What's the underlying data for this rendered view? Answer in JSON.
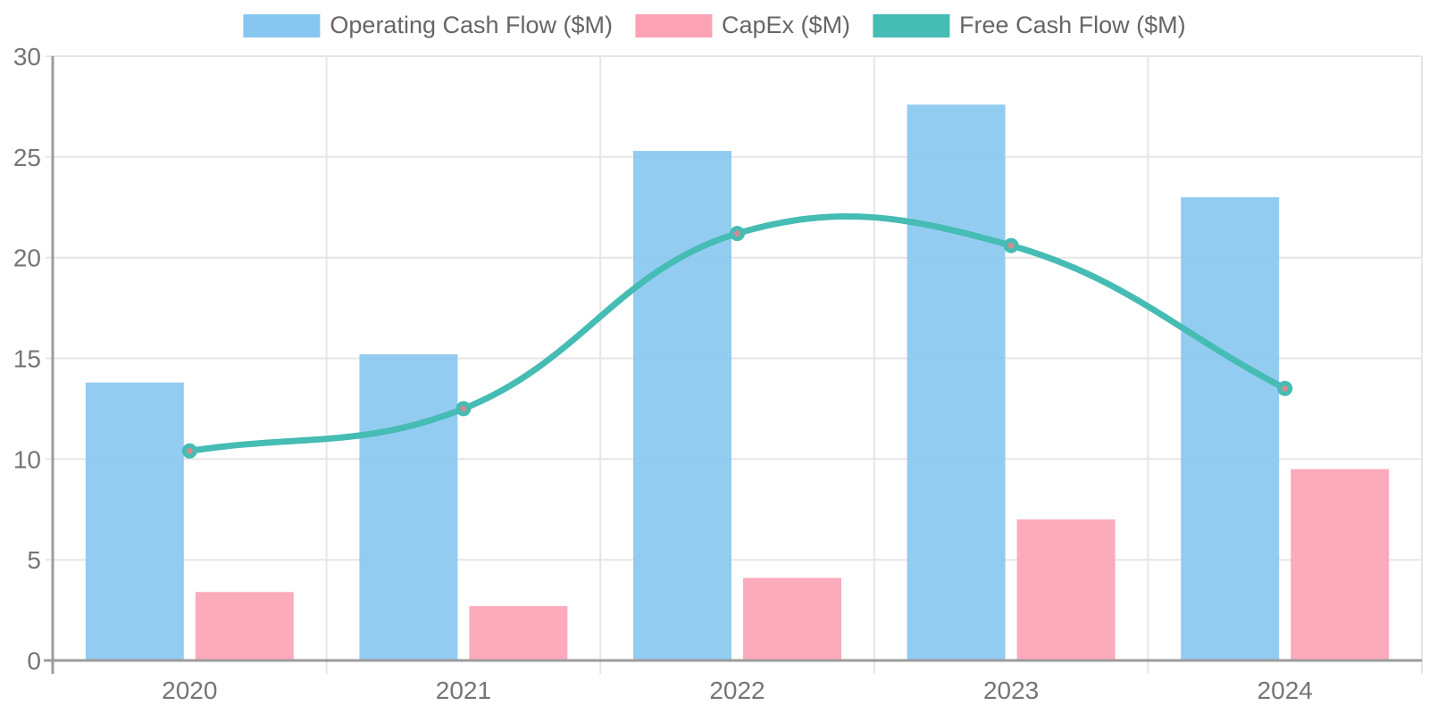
{
  "chart_data": {
    "type": "combo-bar-line",
    "title": "",
    "categories": [
      "2020",
      "2021",
      "2022",
      "2023",
      "2024"
    ],
    "series": [
      {
        "name": "Operating Cash Flow ($M)",
        "type": "bar",
        "color": "#87C6F0",
        "values": [
          13.8,
          15.2,
          25.3,
          27.6,
          23.0
        ]
      },
      {
        "name": "CapEx ($M)",
        "type": "bar",
        "color": "#FCA2B5",
        "values": [
          3.4,
          2.7,
          4.1,
          7.0,
          9.5
        ]
      },
      {
        "name": "Free Cash Flow ($M)",
        "type": "line",
        "color": "#45BCB4",
        "point_fill": "#CF8D8C",
        "values": [
          10.4,
          12.5,
          21.2,
          20.6,
          13.5
        ]
      }
    ],
    "xlabel": "",
    "ylabel": "",
    "ylim": [
      0,
      30
    ],
    "yticks": [
      0,
      5,
      10,
      15,
      20,
      25,
      30
    ],
    "grid": true,
    "legend_position": "top",
    "line_tension": 0.4,
    "style": {
      "background": "#FFFFFF",
      "grid_color": "#E6E6E6",
      "axis_color": "#9C9C9C",
      "tick_label_color": "#757575",
      "legend_text_color": "#666666",
      "bar_opacity": 0.9
    }
  }
}
